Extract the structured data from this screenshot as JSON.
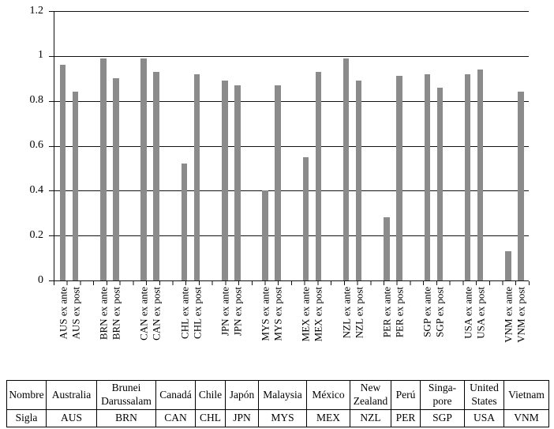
{
  "chart_data": {
    "type": "bar",
    "title": "",
    "xlabel": "",
    "ylabel": "",
    "ylim": [
      0,
      1.2
    ],
    "grid": true,
    "legend": "none",
    "bar_color": "#8b8b8b",
    "yticks": [
      {
        "label": "1.2",
        "value": 1.2
      },
      {
        "label": "1",
        "value": 1.0
      },
      {
        "label": "0.8",
        "value": 0.8
      },
      {
        "label": "0.6",
        "value": 0.6
      },
      {
        "label": "0.4",
        "value": 0.4
      },
      {
        "label": "0.2",
        "value": 0.2
      },
      {
        "label": "0",
        "value": 0.0
      }
    ],
    "categories": [
      "AUS ex ante",
      "AUS ex post",
      "BRN ex ante",
      "BRN ex post",
      "CAN ex ante",
      "CAN ex post",
      "CHL ex ante",
      "CHL ex post",
      "JPN ex ante",
      "JPN ex post",
      "MYS ex ante",
      "MYS ex post",
      "MEX ex ante",
      "MEX ex post",
      "NZL ex ante",
      "NZL ex post",
      "PER ex ante",
      "PER ex post",
      "SGP ex ante",
      "SGP ex post",
      "USA ex ante",
      "USA ex post",
      "VNM ex ante",
      "VNM ex post"
    ],
    "values": [
      0.96,
      0.84,
      0.99,
      0.9,
      0.99,
      0.93,
      0.52,
      0.92,
      0.89,
      0.87,
      0.4,
      0.87,
      0.55,
      0.93,
      0.99,
      0.89,
      0.28,
      0.91,
      0.92,
      0.86,
      0.92,
      0.94,
      0.13,
      0.84
    ],
    "groups": [
      "AUS",
      "BRN",
      "CAN",
      "CHL",
      "JPN",
      "MYS",
      "MEX",
      "NZL",
      "PER",
      "SGP",
      "USA",
      "VNM"
    ]
  },
  "table": {
    "rows": [
      {
        "label": "Nombre",
        "cells": [
          "Australia",
          "Brunei Darussalam",
          "Canadá",
          "Chile",
          "Japón",
          "Malaysia",
          "México",
          "New Zealand",
          "Perú",
          "Singa-pore",
          "United States",
          "Vietnam"
        ]
      },
      {
        "label": "Sigla",
        "cells": [
          "AUS",
          "BRN",
          "CAN",
          "CHL",
          "JPN",
          "MYS",
          "MEX",
          "NZL",
          "PER",
          "SGP",
          "USA",
          "VNM"
        ]
      }
    ]
  }
}
